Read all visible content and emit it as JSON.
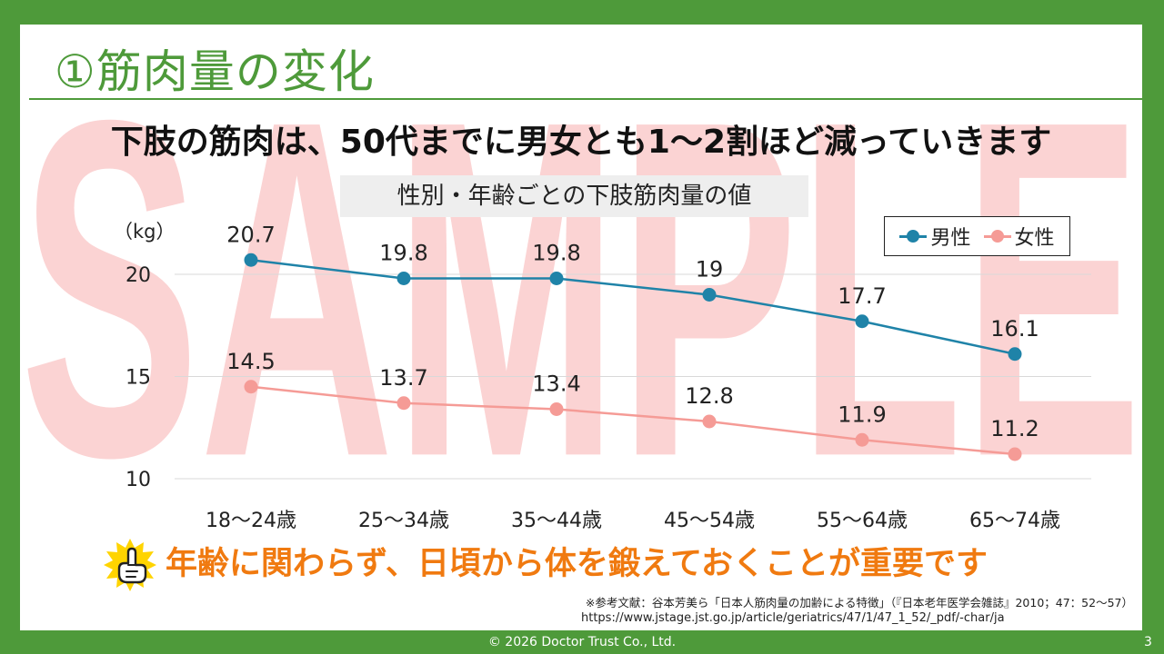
{
  "watermark": "SAMPLE",
  "slide": {
    "title": "①筋肉量の変化",
    "headline": "下肢の筋肉は、50代までに男女とも1～2割ほど減っていきます",
    "bottom_message": "年齢に関わらず、日頃から体を鍛えておくことが重要です",
    "reference_line1": "※参考文献：谷本芳美ら「日本人筋肉量の加齢による特徴」（『日本老年医学会雑誌』2010；47：52～57）",
    "reference_line2": "https://www.jstage.jst.go.jp/article/geriatrics/47/1/47_1_52/_pdf/-char/ja",
    "footer": "© 2026 Doctor Trust Co., Ltd.",
    "page_number": "3"
  },
  "colors": {
    "brand_green": "#4e9a3a",
    "male": "#1f83a8",
    "female": "#f59b96",
    "message_orange": "#f07a10",
    "watermark": "#fbd3d3"
  },
  "chart_data": {
    "type": "line",
    "title": "性別・年齢ごとの下肢筋肉量の値",
    "ylabel": "（kg）",
    "xlabel": "",
    "categories": [
      "18～24歳",
      "25～34歳",
      "35～44歳",
      "45～54歳",
      "55～64歳",
      "65～74歳"
    ],
    "series": [
      {
        "name": "男性",
        "values": [
          20.7,
          19.8,
          19.8,
          19,
          17.7,
          16.1
        ],
        "labels": [
          "20.7",
          "19.8",
          "19.8",
          "19",
          "17.7",
          "16.1"
        ]
      },
      {
        "name": "女性",
        "values": [
          14.5,
          13.7,
          13.4,
          12.8,
          11.9,
          11.2
        ],
        "labels": [
          "14.5",
          "13.7",
          "13.4",
          "12.8",
          "11.9",
          "11.2"
        ]
      }
    ],
    "ylim": [
      10,
      20
    ],
    "yticks": [
      10,
      15,
      20
    ],
    "grid": true,
    "legend": "top-right"
  }
}
